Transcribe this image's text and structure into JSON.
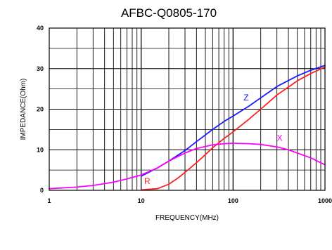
{
  "chart_data": {
    "type": "line",
    "title": "AFBC-Q0805-170",
    "xlabel": "FREQUENCY(MHz)",
    "ylabel": "IMPEDANCE(Ohm)",
    "x_scale": "log",
    "xlim": [
      1,
      1000
    ],
    "ylim": [
      0,
      40
    ],
    "x_ticks": [
      1,
      10,
      100,
      1000
    ],
    "x_tick_labels": [
      "1",
      "10",
      "100",
      "1000"
    ],
    "y_ticks": [
      0,
      10,
      20,
      30,
      40
    ],
    "y_tick_labels": [
      "0",
      "10",
      "20",
      "30",
      "40"
    ],
    "grid": true,
    "legend": "inline labels",
    "series": [
      {
        "name": "Z",
        "color": "#1a1aff",
        "x": [
          10,
          15,
          20,
          30,
          40,
          60,
          80,
          100,
          150,
          200,
          300,
          500,
          700,
          1000
        ],
        "y": [
          3.5,
          5.5,
          7.2,
          9.8,
          12.0,
          15.0,
          17.0,
          18.3,
          20.8,
          22.8,
          25.6,
          28.2,
          29.6,
          30.8
        ]
      },
      {
        "name": "R",
        "color": "#ff2020",
        "x": [
          10,
          15,
          20,
          25,
          30,
          40,
          50,
          60,
          80,
          100,
          150,
          200,
          300,
          500,
          700,
          1000
        ],
        "y": [
          0.1,
          0.4,
          1.5,
          3.0,
          4.4,
          6.8,
          8.8,
          10.5,
          12.8,
          14.4,
          17.6,
          20.0,
          23.5,
          27.0,
          28.8,
          30.4
        ]
      },
      {
        "name": "X",
        "color": "#ff00ff",
        "x": [
          1,
          2,
          3,
          5,
          7,
          10,
          15,
          20,
          30,
          40,
          60,
          80,
          100,
          150,
          200,
          300,
          400,
          500,
          700,
          1000
        ],
        "y": [
          0.4,
          0.8,
          1.2,
          2.0,
          2.8,
          3.8,
          5.5,
          7.2,
          9.2,
          10.3,
          11.2,
          11.5,
          11.6,
          11.5,
          11.3,
          10.7,
          10.0,
          9.2,
          8.0,
          6.3
        ]
      }
    ],
    "annotations": [
      {
        "text": "Z",
        "x": 130,
        "y": 22.2,
        "color": "#1a1aff"
      },
      {
        "text": "R",
        "x": 10.8,
        "y": 1.6,
        "color": "#ff2020"
      },
      {
        "text": "X",
        "x": 300,
        "y": 12.2,
        "color": "#ff00ff"
      }
    ]
  }
}
